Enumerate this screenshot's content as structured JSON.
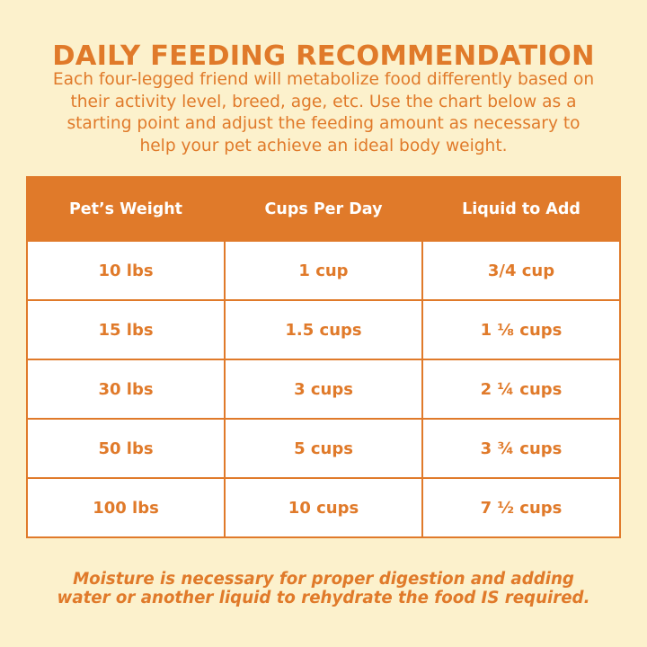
{
  "title": "DAILY FEEDING RECOMMENDATION",
  "intro": {
    "lines": [
      "Each four-legged friend will metabolize food differently based on",
      "their activity level, breed, age, etc. Use the chart below as a",
      "starting point and adjust the feeding amount as necessary to",
      "help your pet achieve an ideal body weight."
    ]
  },
  "table": {
    "headers": [
      "Pet’s Weight",
      "Cups Per Day",
      "Liquid to Add"
    ],
    "rows": [
      [
        "10 lbs",
        "1 cup",
        "3/4 cup"
      ],
      [
        "15 lbs",
        "1.5 cups",
        "1 ⅛ cups"
      ],
      [
        "30 lbs",
        "3 cups",
        "2 ¼ cups"
      ],
      [
        "50 lbs",
        "5 cups",
        "3 ¾ cups"
      ],
      [
        "100 lbs",
        "10 cups",
        "7 ½ cups"
      ]
    ]
  },
  "footer": {
    "lines": [
      "Moisture is necessary for proper digestion and adding",
      "water or another liquid to rehydrate the food IS required."
    ]
  },
  "colors": {
    "accent": "#e07a2a",
    "background": "#fcf1cc",
    "cell_background": "#ffffff",
    "header_text": "#ffffff"
  }
}
